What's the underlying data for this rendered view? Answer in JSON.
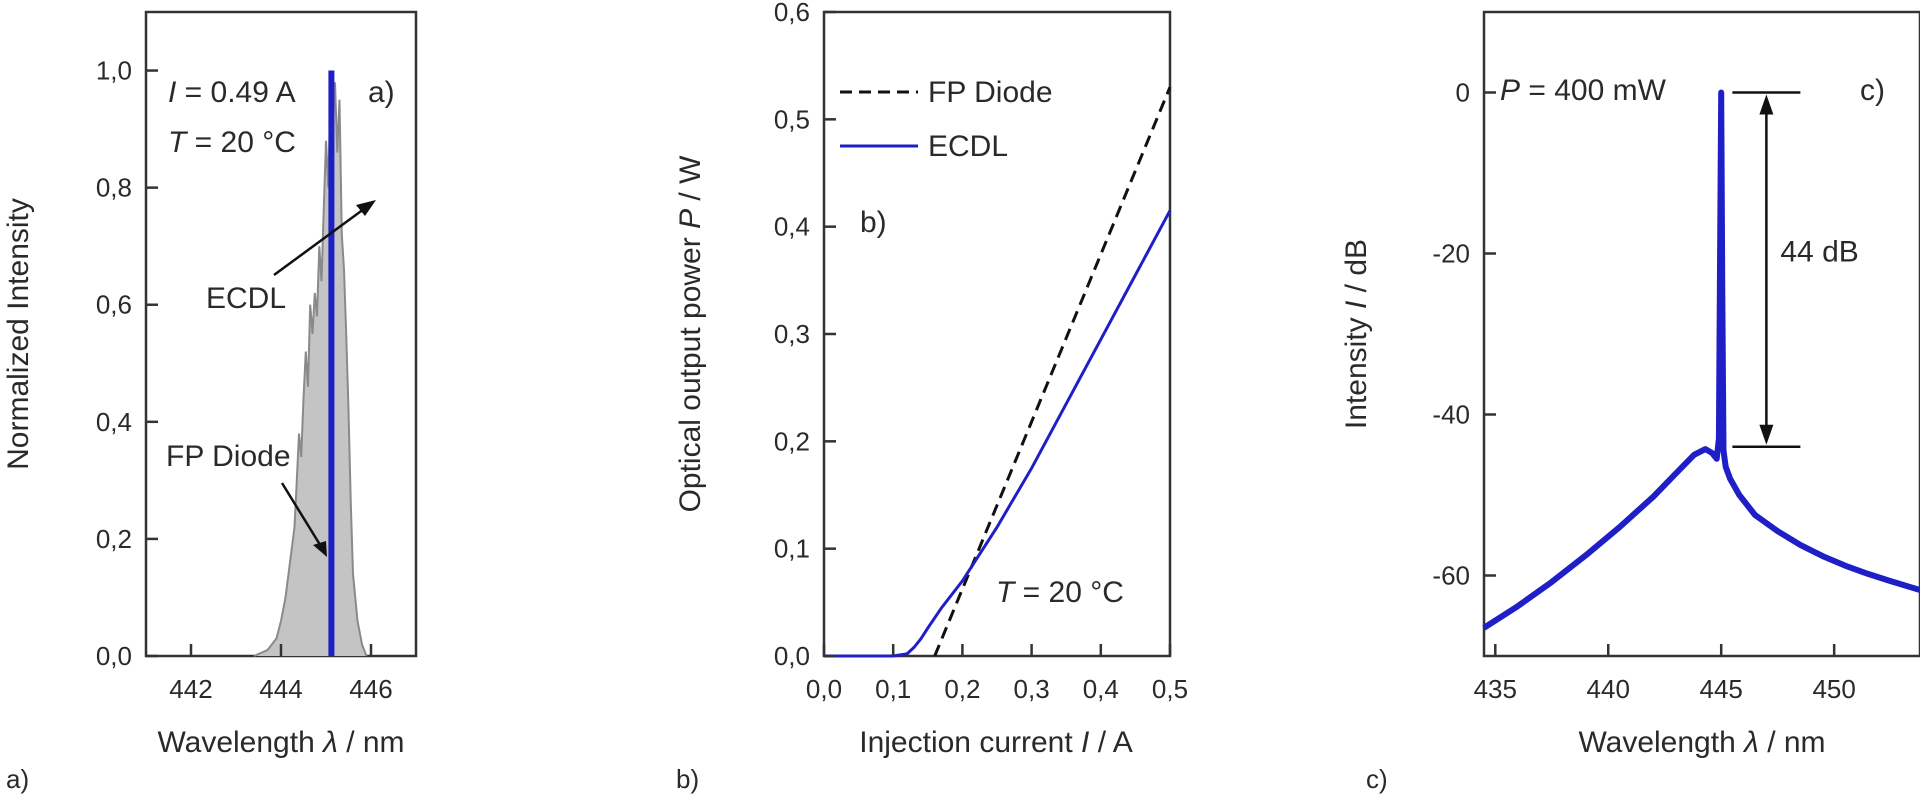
{
  "chart_data": [
    {
      "id": "a",
      "type": "area",
      "panel_label": "a)",
      "corner_label": "a)",
      "xlabel": {
        "pre": "Wavelength ",
        "sym": "λ",
        "post": " / nm"
      },
      "ylabel": "Normalized Intensity",
      "xlim": [
        441,
        447
      ],
      "ylim": [
        0,
        1.1
      ],
      "xticks": [
        442,
        444,
        446
      ],
      "xtick_labels": [
        "442",
        "444",
        "446"
      ],
      "yticks": [
        0,
        0.2,
        0.4,
        0.6,
        0.8,
        1.0
      ],
      "ytick_labels": [
        "0,0",
        "0,2",
        "0,4",
        "0,6",
        "0,8",
        "1,0"
      ],
      "conditions": [
        {
          "sym": "I",
          "text": " = 0.49 A"
        },
        {
          "sym": "T",
          "text": " = 20 °C"
        }
      ],
      "annotations": [
        {
          "text": "ECDL",
          "points_to": [
            445.12,
            0.82
          ]
        },
        {
          "text": "FP Diode",
          "points_to": [
            444.28,
            0.2
          ]
        }
      ],
      "series": [
        {
          "name": "FP Diode",
          "color": "#8a8a8a",
          "fill": "#c4c4c4",
          "x": [
            443.4,
            443.7,
            443.9,
            444.0,
            444.1,
            444.2,
            444.3,
            444.35,
            444.4,
            444.45,
            444.5,
            444.55,
            444.6,
            444.65,
            444.7,
            444.75,
            444.8,
            444.85,
            444.9,
            444.95,
            445.0,
            445.05,
            445.1,
            445.15,
            445.2,
            445.25,
            445.3,
            445.35,
            445.4,
            445.45,
            445.5,
            445.55,
            445.6,
            445.7,
            445.8,
            445.9
          ],
          "y": [
            0.0,
            0.01,
            0.03,
            0.06,
            0.1,
            0.16,
            0.22,
            0.3,
            0.38,
            0.34,
            0.44,
            0.52,
            0.46,
            0.6,
            0.55,
            0.62,
            0.58,
            0.7,
            0.64,
            0.76,
            0.88,
            0.8,
            0.96,
            0.9,
            0.98,
            0.86,
            0.95,
            0.72,
            0.66,
            0.55,
            0.42,
            0.26,
            0.14,
            0.06,
            0.02,
            0.0
          ]
        },
        {
          "name": "ECDL",
          "color": "#1f1fc8",
          "x": [
            445.12,
            445.12
          ],
          "y": [
            0,
            1.0
          ]
        }
      ]
    },
    {
      "id": "b",
      "type": "line",
      "panel_label": "b)",
      "corner_label": "b)",
      "xlabel": {
        "pre": "Injection current ",
        "sym": "I",
        "post": " / A"
      },
      "ylabel": {
        "pre": "Optical output power ",
        "sym": "P",
        "post": " / W"
      },
      "xlim": [
        0,
        0.5
      ],
      "ylim": [
        0,
        0.6
      ],
      "xticks": [
        0,
        0.1,
        0.2,
        0.3,
        0.4,
        0.5
      ],
      "xtick_labels": [
        "0,0",
        "0,1",
        "0,2",
        "0,3",
        "0,4",
        "0,5"
      ],
      "yticks": [
        0,
        0.1,
        0.2,
        0.3,
        0.4,
        0.5,
        0.6
      ],
      "ytick_labels": [
        "0,0",
        "0,1",
        "0,2",
        "0,3",
        "0,4",
        "0,5",
        "0,6"
      ],
      "condition": {
        "sym": "T",
        "text": " = 20 °C"
      },
      "legend": [
        "FP Diode",
        "ECDL"
      ],
      "series": [
        {
          "name": "FP Diode",
          "color": "#111111",
          "dash": true,
          "x": [
            0.16,
            0.5
          ],
          "y": [
            0.0,
            0.53
          ]
        },
        {
          "name": "ECDL",
          "color": "#1f1fc8",
          "dash": false,
          "x": [
            0.0,
            0.1,
            0.12,
            0.13,
            0.14,
            0.15,
            0.17,
            0.2,
            0.25,
            0.3,
            0.35,
            0.4,
            0.45,
            0.5
          ],
          "y": [
            0.0,
            0.0,
            0.002,
            0.008,
            0.016,
            0.026,
            0.045,
            0.07,
            0.12,
            0.175,
            0.235,
            0.295,
            0.355,
            0.415
          ]
        }
      ]
    },
    {
      "id": "c",
      "type": "line",
      "panel_label": "c)",
      "corner_label": "c)",
      "xlabel": {
        "pre": "Wavelength ",
        "sym": "λ",
        "post": " / nm"
      },
      "ylabel": {
        "pre": "Intensity ",
        "sym": "I",
        "post": " / dB"
      },
      "xlim": [
        434.5,
        453.8
      ],
      "ylim": [
        -70,
        10
      ],
      "xticks": [
        435,
        440,
        445,
        450
      ],
      "xtick_labels": [
        "435",
        "440",
        "445",
        "450"
      ],
      "yticks": [
        0,
        -20,
        -40,
        -60
      ],
      "ytick_labels": [
        "0",
        "-20",
        "-40",
        "-60"
      ],
      "condition": {
        "sym": "P",
        "text": " = 400 mW"
      },
      "annotation": {
        "text": "44 dB",
        "from": 0,
        "to": -44,
        "x": 447.0
      },
      "series": [
        {
          "name": "",
          "color": "#1f1fc8",
          "x": [
            434.5,
            436,
            437.5,
            439,
            440.5,
            442,
            443,
            443.8,
            444.3,
            444.6,
            444.8,
            444.9,
            444.95,
            445.0,
            445.05,
            445.1,
            445.2,
            445.4,
            445.8,
            446.5,
            447.5,
            448.5,
            449.5,
            450.5,
            451.5,
            452.5,
            453.8
          ],
          "y": [
            -66.5,
            -63.8,
            -60.8,
            -57.5,
            -54.0,
            -50.2,
            -47.3,
            -45.0,
            -44.3,
            -44.8,
            -45.5,
            -43.0,
            -20.0,
            0.0,
            -25.0,
            -44.5,
            -46.5,
            -48.0,
            -50.0,
            -52.5,
            -54.5,
            -56.2,
            -57.6,
            -58.8,
            -59.8,
            -60.7,
            -61.8
          ]
        }
      ]
    }
  ]
}
